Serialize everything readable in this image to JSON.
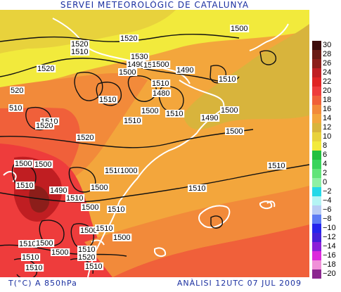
{
  "title": "SERVEI METEOROLÒGIC DE CATALUNYA",
  "footer": {
    "left": "T(°C) A 850hPa",
    "right": "ANÀLISI 12UTC 07 JUL 2009"
  },
  "legend": [
    {
      "value": "30",
      "color": "#3c0c0c"
    },
    {
      "value": "28",
      "color": "#6a1a14"
    },
    {
      "value": "26",
      "color": "#8c1e1a"
    },
    {
      "value": "24",
      "color": "#c01e22"
    },
    {
      "value": "22",
      "color": "#e02424"
    },
    {
      "value": "20",
      "color": "#ee3c3c"
    },
    {
      "value": "18",
      "color": "#f0603a"
    },
    {
      "value": "16",
      "color": "#f28a3a"
    },
    {
      "value": "14",
      "color": "#f3a63c"
    },
    {
      "value": "12",
      "color": "#d8b43c"
    },
    {
      "value": "10",
      "color": "#e8d23c"
    },
    {
      "value": "8",
      "color": "#f2ea3c"
    },
    {
      "value": "6",
      "color": "#22c040"
    },
    {
      "value": "4",
      "color": "#39d45c"
    },
    {
      "value": "2",
      "color": "#62e47a"
    },
    {
      "value": "0",
      "color": "#8ef0a4"
    },
    {
      "value": "−2",
      "color": "#24d8e8"
    },
    {
      "value": "−4",
      "color": "#b4f4f4"
    },
    {
      "value": "−6",
      "color": "#b8ccf4"
    },
    {
      "value": "−8",
      "color": "#5c7cf4"
    },
    {
      "value": "−10",
      "color": "#2424ec"
    },
    {
      "value": "−12",
      "color": "#4420d8"
    },
    {
      "value": "−14",
      "color": "#8a20d8"
    },
    {
      "value": "−16",
      "color": "#dc28dc"
    },
    {
      "value": "−18",
      "color": "#f090d8"
    },
    {
      "value": "−20",
      "color": "#8c2890"
    }
  ],
  "isobar_labels": [
    {
      "text": "1520"
    },
    {
      "text": "1500"
    },
    {
      "text": "1520"
    },
    {
      "text": "1510"
    },
    {
      "text": "1520"
    },
    {
      "text": "1530"
    },
    {
      "text": "1490"
    },
    {
      "text": "1500"
    },
    {
      "text": "1510"
    },
    {
      "text": "1500"
    },
    {
      "text": "1490"
    },
    {
      "text": "1510"
    },
    {
      "text": "1480"
    },
    {
      "text": "1510"
    },
    {
      "text": "1500"
    },
    {
      "text": "1510"
    },
    {
      "text": "1490"
    },
    {
      "text": "1500"
    },
    {
      "text": "520"
    },
    {
      "text": "510"
    },
    {
      "text": "1510"
    },
    {
      "text": "1520"
    },
    {
      "text": "1510"
    },
    {
      "text": "1500"
    },
    {
      "text": "1520"
    },
    {
      "text": "1510"
    },
    {
      "text": "1500"
    },
    {
      "text": "1500"
    },
    {
      "text": "1510"
    },
    {
      "text": "1000"
    },
    {
      "text": "1510"
    },
    {
      "text": "1490"
    },
    {
      "text": "1500"
    },
    {
      "text": "1510"
    },
    {
      "text": "1510"
    },
    {
      "text": "1500"
    },
    {
      "text": "1510"
    },
    {
      "text": "1510"
    },
    {
      "text": "1500"
    },
    {
      "text": "1510"
    },
    {
      "text": "1500"
    },
    {
      "text": "1510"
    },
    {
      "text": "1500"
    },
    {
      "text": "1510"
    },
    {
      "text": "1510"
    },
    {
      "text": "1500"
    },
    {
      "text": "1520"
    },
    {
      "text": "1510"
    },
    {
      "text": "1510"
    }
  ]
}
